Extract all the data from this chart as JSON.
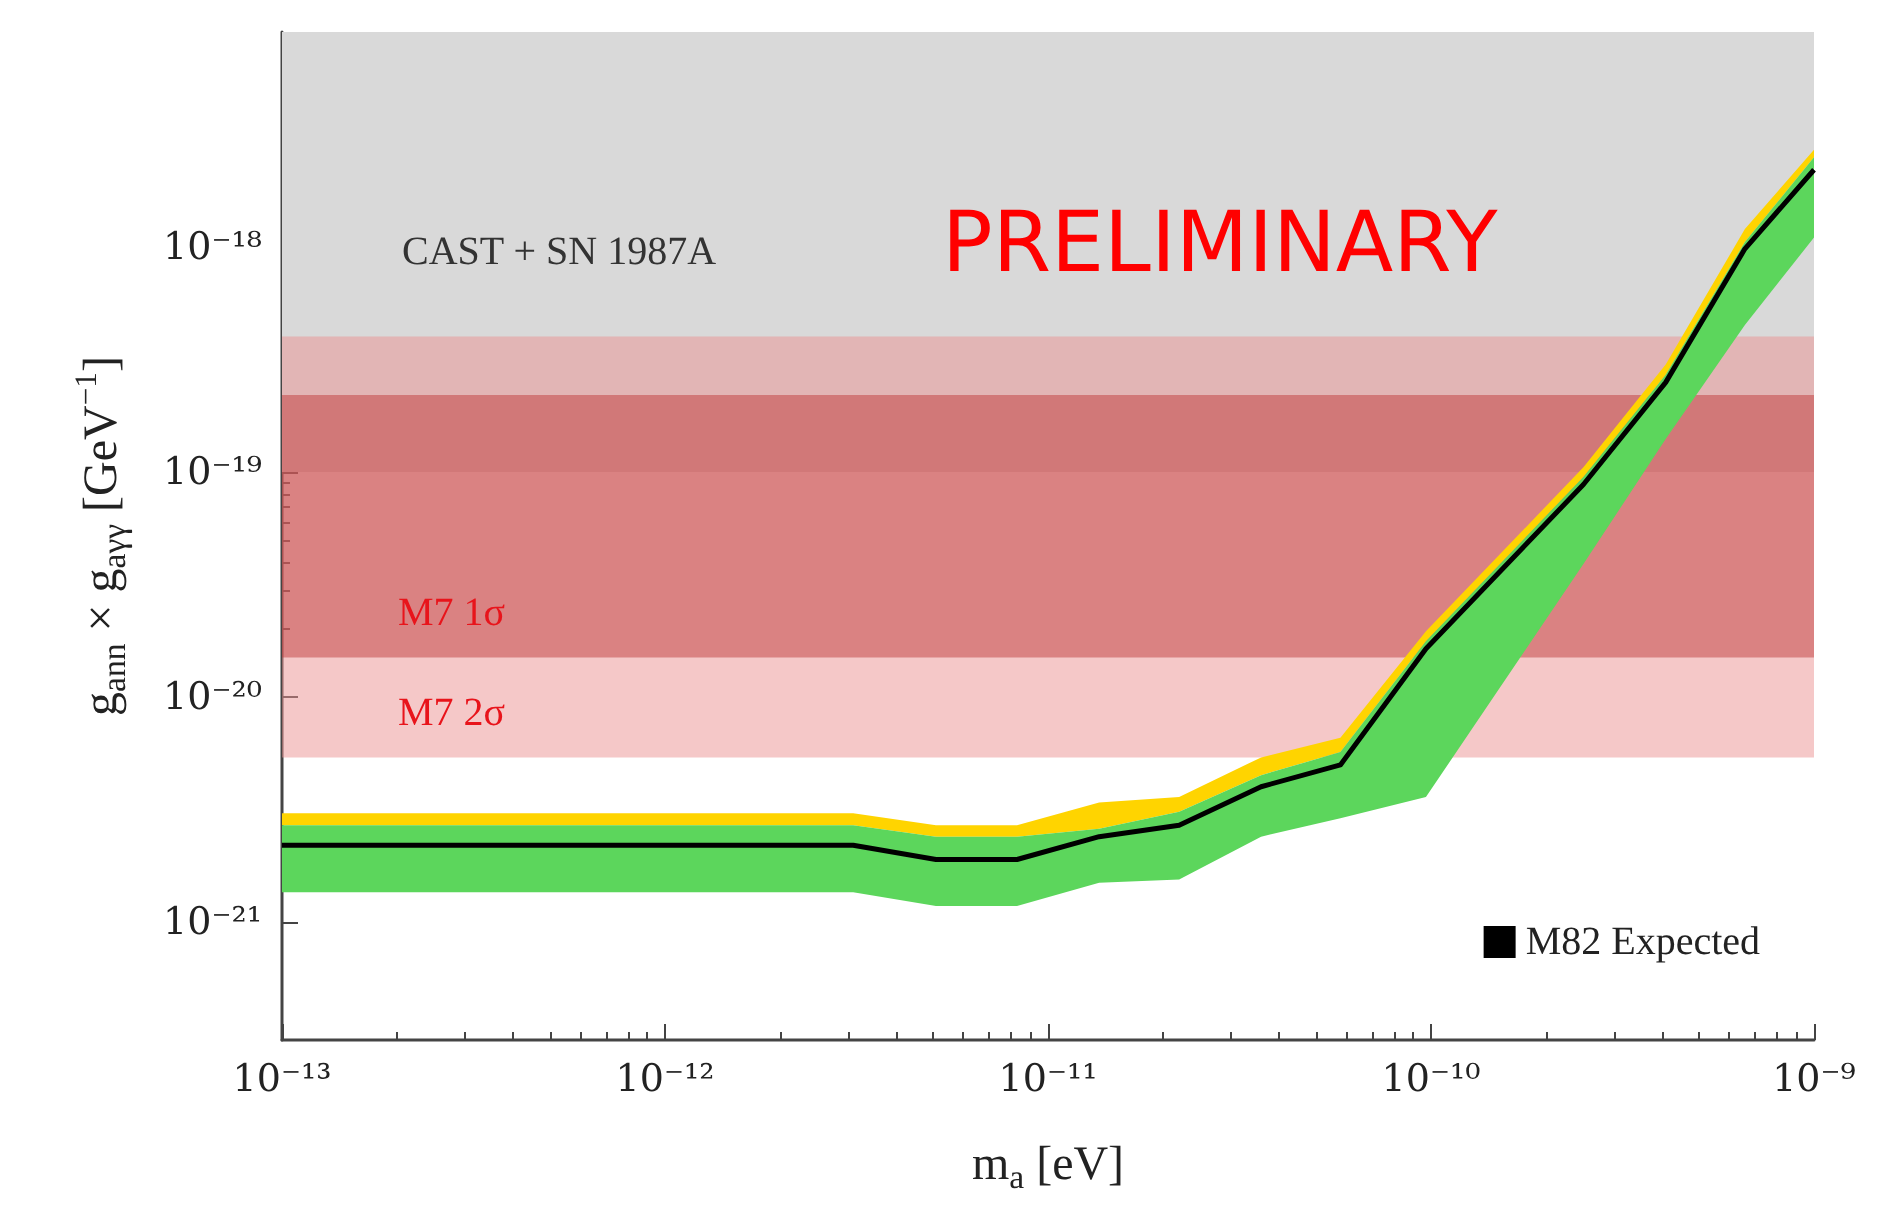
{
  "chart_data": {
    "type": "line",
    "xlabel": "m$_{a}$ [eV]",
    "ylabel": "g$_{ann}$ × g$_{aγγ}$ [GeV$^{−1}$]",
    "log": "xy",
    "grid": false,
    "legend": "bottom right",
    "xlim": [
      1e-13,
      1e-09
    ],
    "ylim": [
      3e-22,
      9e-18
    ],
    "xticks": [
      {
        "value": 1e-13,
        "label": "10⁻¹³"
      },
      {
        "value": 1e-12,
        "label": "10⁻¹²"
      },
      {
        "value": 1e-11,
        "label": "10⁻¹¹"
      },
      {
        "value": 1e-10,
        "label": "10⁻¹⁰"
      },
      {
        "value": 1e-09,
        "label": "10⁻⁹"
      }
    ],
    "yticks": [
      {
        "value": 1e-21,
        "label": "10⁻²¹"
      },
      {
        "value": 1e-20,
        "label": "10⁻²⁰"
      },
      {
        "value": 1e-19,
        "label": "10⁻¹⁹"
      },
      {
        "value": 1e-18,
        "label": "10⁻¹⁸"
      }
    ],
    "x": [
      1e-13,
      3.1e-12,
      5.1e-12,
      8.3e-12,
      1.36e-11,
      2.2e-11,
      3.6e-11,
      5.8e-11,
      9.7e-11,
      2.5e-10,
      4.1e-10,
      6.6e-10,
      1e-09
    ],
    "series": [
      {
        "type": "area",
        "color": "#ffd400",
        "values": [
          null,
          null,
          null,
          null,
          null,
          null,
          null,
          null,
          null,
          null,
          null,
          null,
          null
        ],
        "lower": [
          2.7e-21,
          2.7e-21,
          2.4e-21,
          2.4e-21,
          2.6e-21,
          3.1e-21,
          4.5e-21,
          5.7e-21,
          1.77e-20,
          9.5e-20,
          2.7e-19,
          1.05e-18,
          2.5e-18
        ],
        "upper": [
          3.05e-21,
          3.05e-21,
          2.7e-21,
          2.7e-21,
          3.4e-21,
          3.6e-21,
          5.4e-21,
          6.6e-21,
          1.96e-20,
          1.05e-19,
          3e-19,
          1.2e-18,
          2.7e-18
        ]
      },
      {
        "type": "area",
        "color": "#5cd65c",
        "values": [
          null,
          null,
          null,
          null,
          null,
          null,
          null,
          null,
          null,
          null,
          null,
          null,
          null
        ],
        "lower": [
          1.36e-21,
          1.36e-21,
          1.18e-21,
          1.18e-21,
          1.5e-21,
          1.55e-21,
          2.4e-21,
          2.9e-21,
          3.6e-21,
          3.9e-20,
          1.4e-19,
          4.5e-19,
          1.1e-18
        ],
        "upper": [
          2.7e-21,
          2.7e-21,
          2.4e-21,
          2.4e-21,
          2.6e-21,
          3.1e-21,
          4.5e-21,
          5.7e-21,
          1.77e-20,
          9.5e-20,
          2.7e-19,
          1.05e-18,
          2.5e-18
        ]
      },
      {
        "name": "M82 Expected",
        "color": "#000000",
        "values": [
          2.2e-21,
          2.2e-21,
          1.9e-21,
          1.9e-21,
          2.4e-21,
          2.7e-21,
          4e-21,
          5e-21,
          1.64e-20,
          8.8e-20,
          2.5e-19,
          9.8e-19,
          2.2e-18
        ]
      }
    ],
    "bands": [
      {
        "axis": "y",
        "from": 1e-19,
        "to": 9e-18,
        "label": "CAST + SN 1987A",
        "color": "#d9d9d9"
      },
      {
        "axis": "y",
        "from": 5.4e-21,
        "to": 4e-19,
        "label": "M7 2σ",
        "color": "#ec9292"
      },
      {
        "axis": "y",
        "from": 1.5e-20,
        "to": 2.2e-19,
        "label": "M7 1σ",
        "color": "#c03c3c"
      }
    ],
    "annotations": [
      "PRELIMINARY"
    ]
  }
}
